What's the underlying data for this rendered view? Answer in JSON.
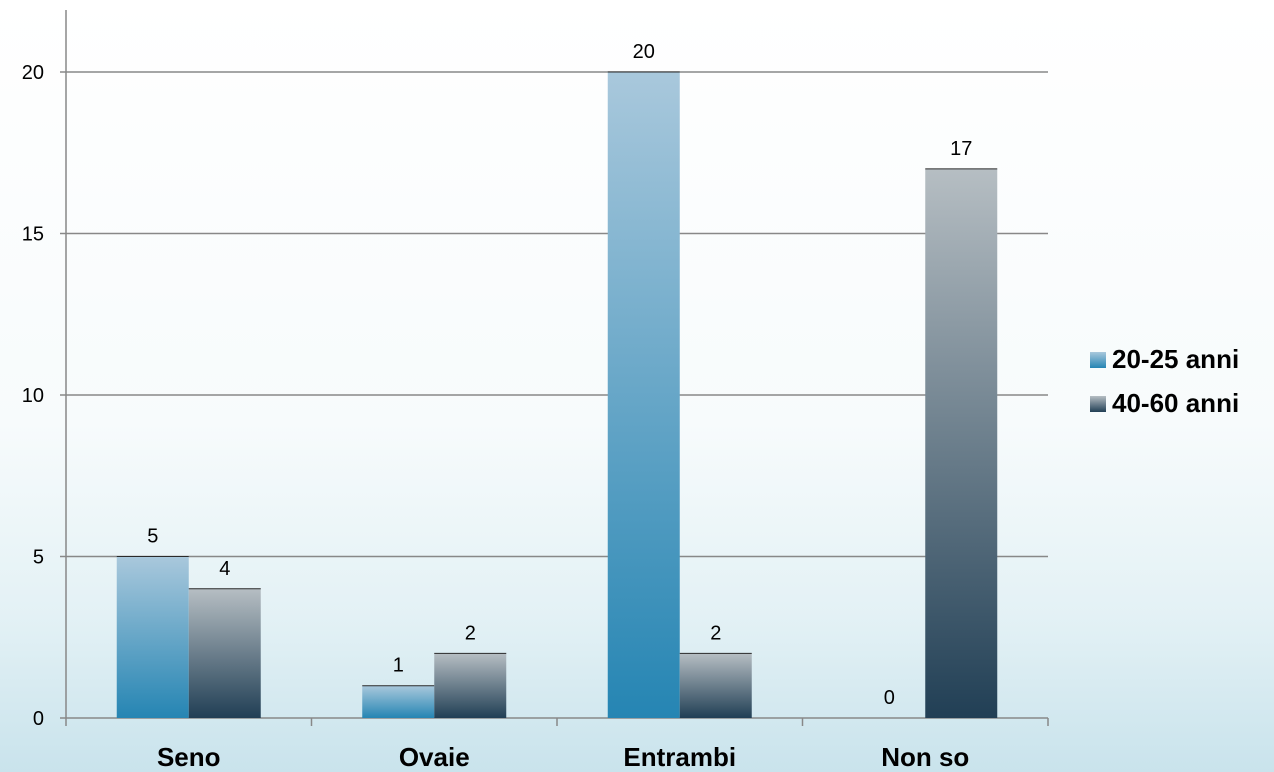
{
  "chart_data": {
    "type": "bar",
    "categories": [
      "Seno",
      "Ovaie",
      "Entrambi",
      "Non so"
    ],
    "series": [
      {
        "name": "20-25 anni",
        "values": [
          5,
          1,
          20,
          0
        ],
        "color": "#3d94bd"
      },
      {
        "name": "40-60 anni",
        "values": [
          4,
          2,
          2,
          17
        ],
        "color": "#5a707c"
      }
    ],
    "ylim": [
      0,
      22
    ],
    "yticks": [
      0,
      5,
      10,
      15,
      20
    ],
    "grid": true,
    "legend_position": "right"
  }
}
